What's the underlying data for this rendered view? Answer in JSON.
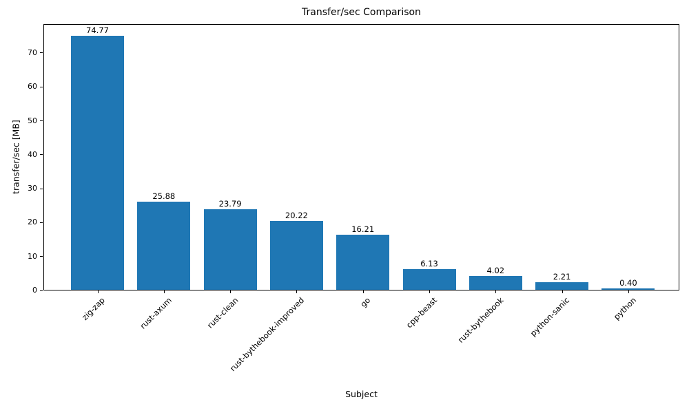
{
  "chart_data": {
    "type": "bar",
    "title": "Transfer/sec Comparison",
    "xlabel": "Subject",
    "ylabel": "transfer/sec [MB]",
    "categories": [
      "zig-zap",
      "rust-axum",
      "rust-clean",
      "rust-bythebook-improved",
      "go",
      "cpp-beast",
      "rust-bythebook",
      "python-sanic",
      "python"
    ],
    "values": [
      74.77,
      25.88,
      23.79,
      20.22,
      16.21,
      6.13,
      4.02,
      2.21,
      0.4
    ],
    "bar_value_labels": [
      "74.77",
      "25.88",
      "23.79",
      "20.22",
      "16.21",
      "6.13",
      "4.02",
      "2.21",
      "0.40"
    ],
    "bar_color": "#1f77b4",
    "ylim": [
      0,
      78.5
    ],
    "yticks": [
      0,
      10,
      20,
      30,
      40,
      50,
      60,
      70
    ],
    "x_tick_rotation_deg": 45,
    "grid": false,
    "legend": "none",
    "background_color": "#ffffff",
    "text_color": "#000000"
  }
}
